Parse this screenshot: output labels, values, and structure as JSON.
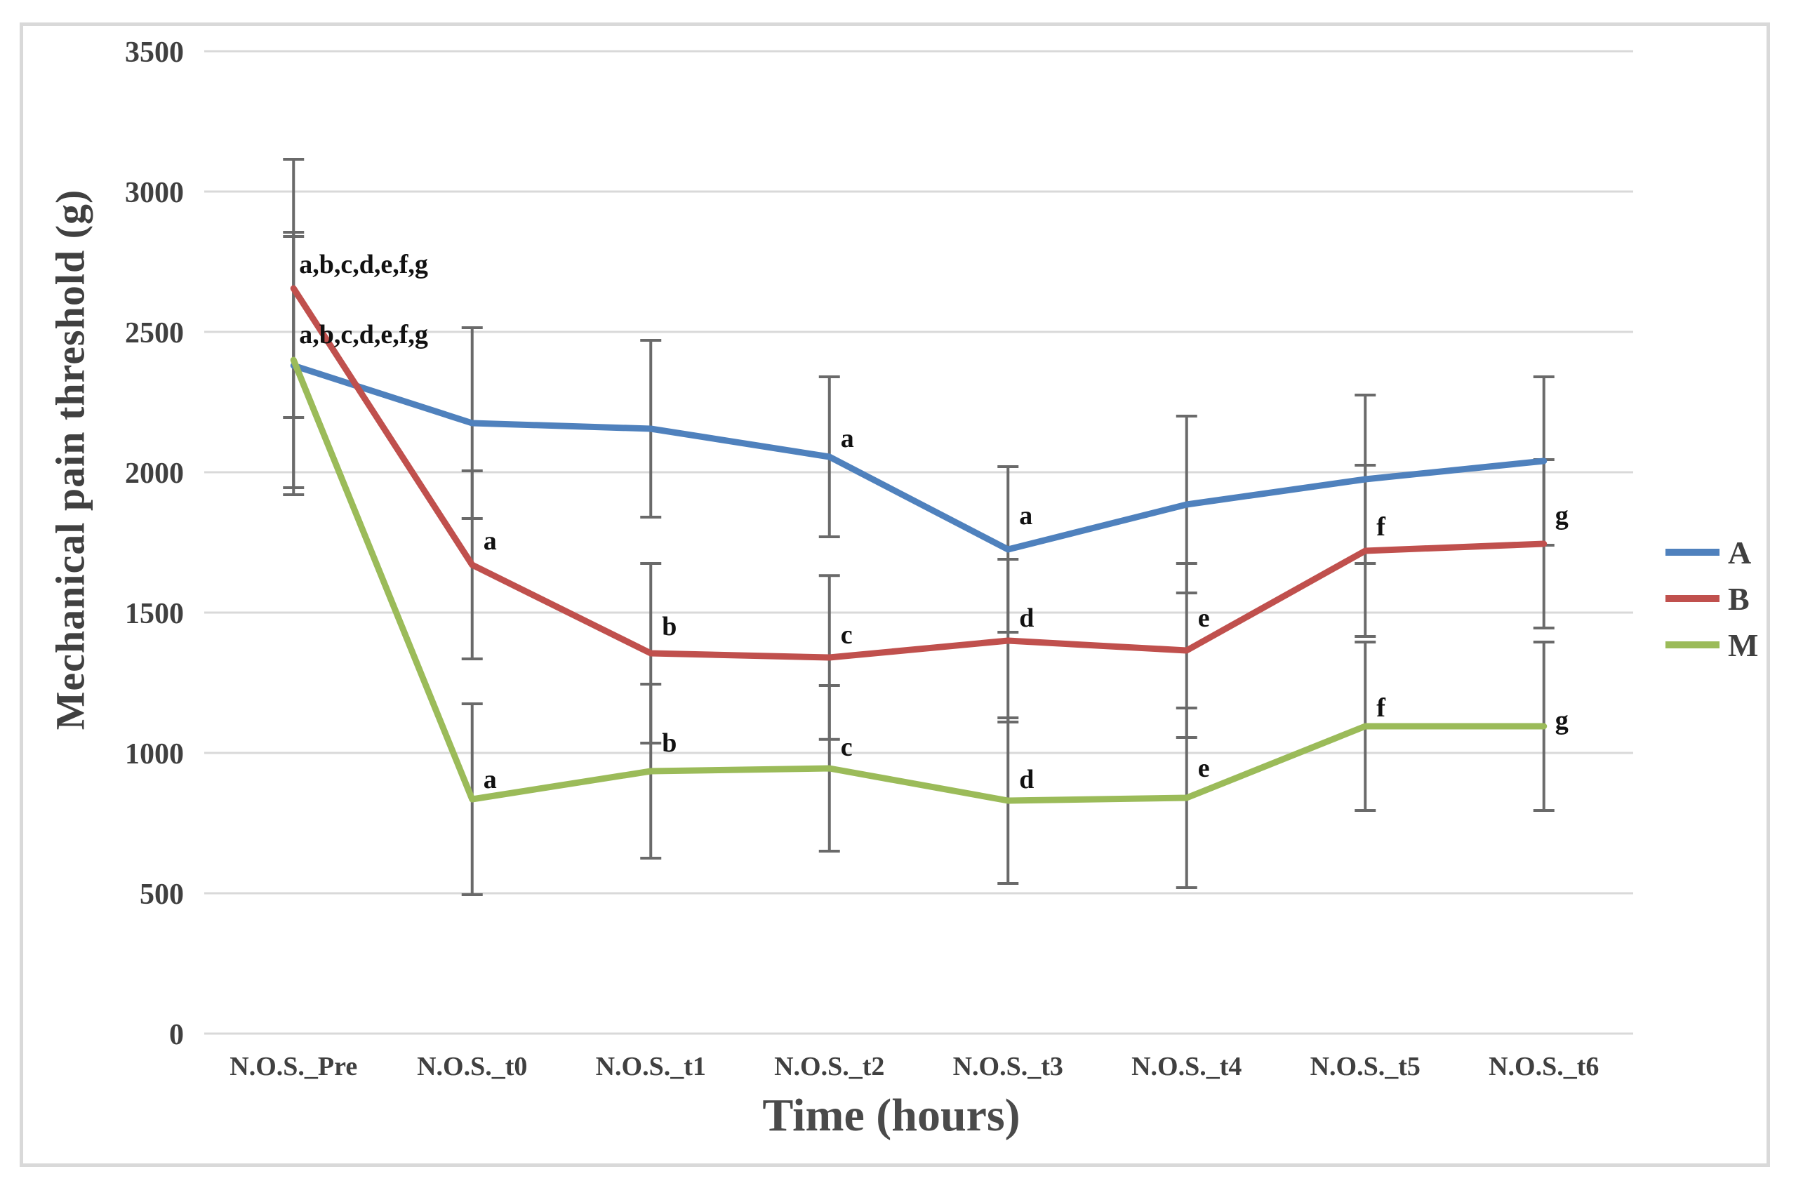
{
  "figure": {
    "y_axis_title": "Mechanical pain threshold (g)",
    "x_axis_title": "Time (hours)"
  },
  "chart_data": {
    "type": "line",
    "title": "",
    "xlabel": "Time (hours)",
    "ylabel": "Mechanical pain threshold (g)",
    "ylim": [
      0,
      3500
    ],
    "ytick_step": 500,
    "grid": "horizontal",
    "legend_position": "right",
    "categories": [
      "N.O.S._Pre",
      "N.O.S._t0",
      "N.O.S._t1",
      "N.O.S._t2",
      "N.O.S._t3",
      "N.O.S._t4",
      "N.O.S._t5",
      "N.O.S._t6"
    ],
    "series": [
      {
        "name": "A",
        "color": "#4F81BD",
        "values": [
          2380,
          2175,
          2155,
          2055,
          1725,
          1885,
          1975,
          2040
        ],
        "errors": [
          460,
          340,
          315,
          285,
          295,
          315,
          300,
          300
        ]
      },
      {
        "name": "B",
        "color": "#C0504D",
        "values": [
          2655,
          1670,
          1355,
          1340,
          1400,
          1365,
          1720,
          1745
        ],
        "errors": [
          460,
          335,
          320,
          292,
          290,
          310,
          305,
          300
        ]
      },
      {
        "name": "M",
        "color": "#9BBB59",
        "values": [
          2400,
          835,
          935,
          945,
          830,
          840,
          1095,
          1095
        ],
        "errors": [
          455,
          340,
          310,
          295,
          295,
          320,
          300,
          300
        ]
      }
    ],
    "annotations": [
      {
        "series": "B",
        "point": 0,
        "text": "a,b,c,d,e,f,g",
        "y": 2740
      },
      {
        "series": "A",
        "point": 0,
        "text": "a,b,c,d,e,f,g",
        "y": 2490
      },
      {
        "series": "B",
        "point": 1,
        "text": "a",
        "y": 1755
      },
      {
        "series": "M",
        "point": 1,
        "text": "a",
        "y": 905
      },
      {
        "series": "B",
        "point": 2,
        "text": "b",
        "y": 1450
      },
      {
        "series": "M",
        "point": 2,
        "text": "b",
        "y": 1035
      },
      {
        "series": "A",
        "point": 3,
        "text": "a",
        "y": 2120
      },
      {
        "series": "B",
        "point": 3,
        "text": "c",
        "y": 1420
      },
      {
        "series": "M",
        "point": 3,
        "text": "c",
        "y": 1020
      },
      {
        "series": "A",
        "point": 4,
        "text": "a",
        "y": 1845
      },
      {
        "series": "B",
        "point": 4,
        "text": "d",
        "y": 1480
      },
      {
        "series": "M",
        "point": 4,
        "text": "d",
        "y": 905
      },
      {
        "series": "B",
        "point": 5,
        "text": "e",
        "y": 1480
      },
      {
        "series": "M",
        "point": 5,
        "text": "e",
        "y": 945
      },
      {
        "series": "B",
        "point": 6,
        "text": "f",
        "y": 1805
      },
      {
        "series": "M",
        "point": 6,
        "text": "f",
        "y": 1160
      },
      {
        "series": "B",
        "point": 7,
        "text": "g",
        "y": 1845
      },
      {
        "series": "M",
        "point": 7,
        "text": "g",
        "y": 1115
      }
    ],
    "colors": {
      "gridline": "#d9d9d9",
      "error_bar": "#6a6a6a",
      "tick_text": "#404040",
      "annotation_text": "#111111",
      "frame_border": "#d9d9d9"
    }
  }
}
